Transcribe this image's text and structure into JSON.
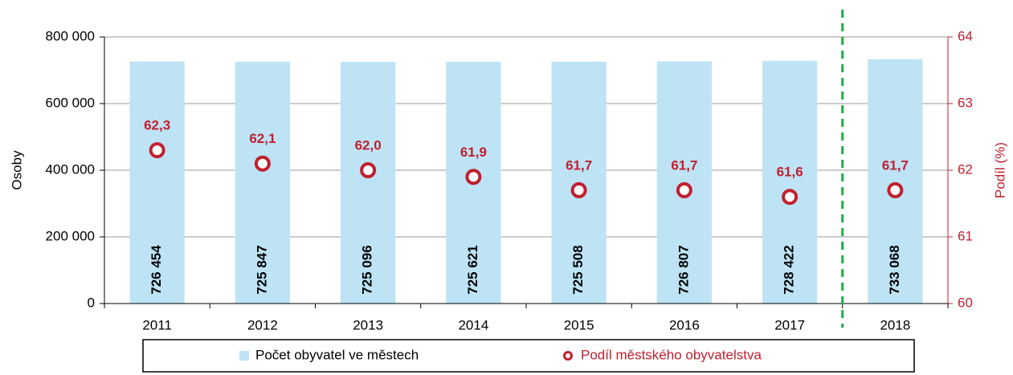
{
  "chart_data": {
    "type": "bar",
    "categories": [
      "2011",
      "2012",
      "2013",
      "2014",
      "2015",
      "2016",
      "2017",
      "2018"
    ],
    "series": [
      {
        "name": "Počet obyvatel ve městech",
        "type": "bar",
        "axis": "y",
        "color": "#bde3f5",
        "values": [
          726454,
          725847,
          725096,
          725621,
          725508,
          726807,
          728422,
          733068
        ],
        "value_labels": [
          "726 454",
          "725 847",
          "725 096",
          "725 621",
          "725 508",
          "726 807",
          "728 422",
          "733 068"
        ]
      },
      {
        "name": "Podíl městského obyvatelstva",
        "type": "scatter",
        "axis": "y2",
        "color": "#c0202e",
        "values": [
          62.3,
          62.1,
          62.0,
          61.9,
          61.7,
          61.7,
          61.6,
          61.7
        ],
        "value_labels": [
          "62,3",
          "62,1",
          "62,0",
          "61,9",
          "61,7",
          "61,7",
          "61,6",
          "61,7"
        ]
      }
    ],
    "y_label": "Osoby",
    "y2_label": "Podíl  (%)",
    "ylim": [
      0,
      800000
    ],
    "yticks": [
      0,
      {
        "value": 200000,
        "label": "200 000"
      },
      {
        "value": 400000,
        "label": "400 000"
      },
      {
        "value": 600000,
        "label": "600 000"
      },
      {
        "value": 800000,
        "label": "800 000"
      }
    ],
    "y2lim": [
      60,
      64
    ],
    "y2ticks": [
      60,
      61,
      62,
      63,
      64
    ],
    "grid": true
  }
}
